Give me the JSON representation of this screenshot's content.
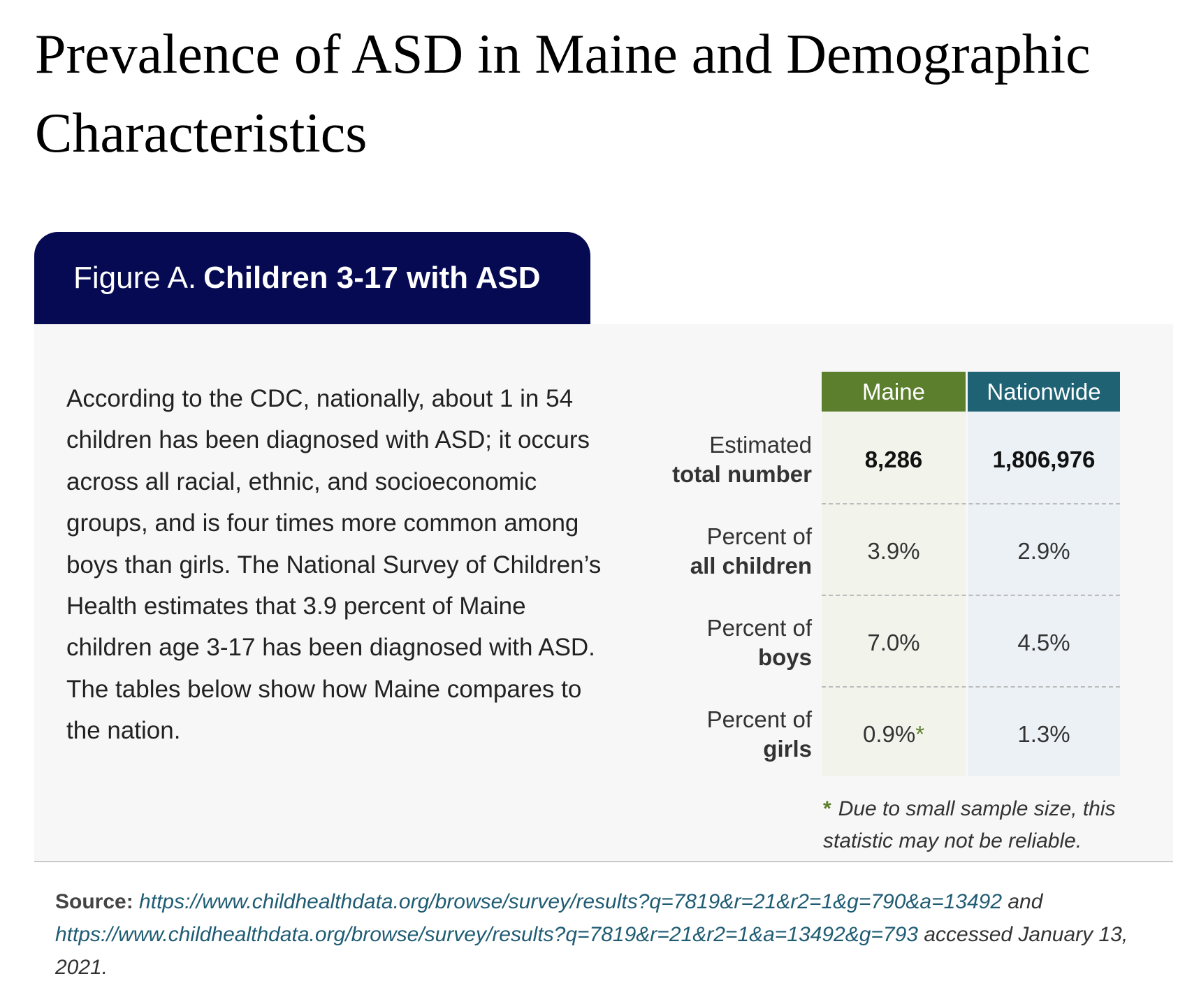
{
  "page": {
    "title": "Prevalence of ASD in Maine and Demographic Characteristics"
  },
  "figure": {
    "label": "Figure A.",
    "title": "Children 3-17 with ASD",
    "intro": "According to the CDC, nationally, about 1 in 54 children has been diagnosed with ASD; it occurs across all racial, ethnic, and socioeconomic groups, and is four times more common among boys than girls. The National Survey of Children’s Health estimates that 3.9 percent of Maine children age 3-17 has been diagnosed with ASD. The tables below show how Maine compares to the nation."
  },
  "table": {
    "columns": [
      "Maine",
      "Nationwide"
    ],
    "colors": {
      "maine_header": "#5c7f2d",
      "nation_header": "#1f6273",
      "tab_bg": "#050a52"
    },
    "rows": [
      {
        "label_line1": "Estimated",
        "label_line2": "total number",
        "maine": "8,286",
        "nationwide": "1,806,976"
      },
      {
        "label_line1": "Percent of",
        "label_line2": "all children",
        "maine": "3.9%",
        "nationwide": "2.9%"
      },
      {
        "label_line1": "Percent of",
        "label_line2": "boys",
        "maine": "7.0%",
        "nationwide": "4.5%"
      },
      {
        "label_line1": "Percent of",
        "label_line2": "girls",
        "maine": "0.9%",
        "maine_marker": "*",
        "nationwide": "1.3%"
      }
    ],
    "footnote": {
      "marker": "*",
      "text": "Due to small sample size, this statistic may not be reliable."
    }
  },
  "source": {
    "label": "Source:",
    "link1": "https://www.childhealthdata.org/browse/survey/results?q=7819&r=21&r2=1&g=790&a=13492",
    "and": "and",
    "link2": "https://www.childhealthdata.org/browse/survey/results?q=7819&r=21&r2=1&a=13492&g=793",
    "accessed": "accessed January 13, 2021."
  }
}
